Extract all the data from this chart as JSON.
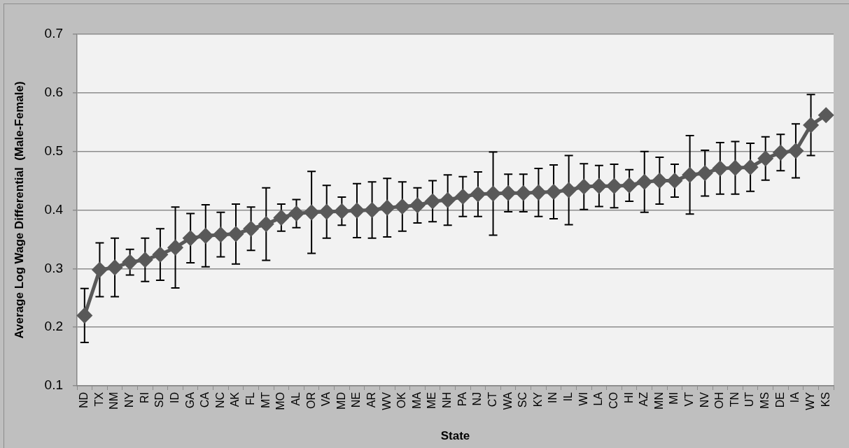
{
  "chart_data": {
    "type": "line",
    "xlabel": "State",
    "ylabel": "Average Log Wage Differential  (Male-Female)",
    "categories": [
      "ND",
      "TX",
      "NM",
      "NY",
      "RI",
      "SD",
      "ID",
      "GA",
      "CA",
      "NC",
      "AK",
      "FL",
      "MT",
      "MO",
      "AL",
      "OR",
      "VA",
      "MD",
      "NE",
      "AR",
      "WV",
      "OK",
      "MA",
      "ME",
      "NH",
      "PA",
      "NJ",
      "CT",
      "WA",
      "SC",
      "KY",
      "IN",
      "IL",
      "WI",
      "LA",
      "CO",
      "HI",
      "AZ",
      "MN",
      "MI",
      "VT",
      "NV",
      "OH",
      "TN",
      "UT",
      "MS",
      "DE",
      "IA",
      "WY",
      "KS"
    ],
    "values": [
      0.22,
      0.298,
      0.302,
      0.311,
      0.315,
      0.324,
      0.336,
      0.352,
      0.356,
      0.358,
      0.359,
      0.368,
      0.376,
      0.387,
      0.394,
      0.396,
      0.397,
      0.398,
      0.399,
      0.4,
      0.404,
      0.406,
      0.408,
      0.415,
      0.417,
      0.423,
      0.427,
      0.428,
      0.429,
      0.429,
      0.43,
      0.431,
      0.434,
      0.44,
      0.441,
      0.441,
      0.442,
      0.448,
      0.45,
      0.45,
      0.46,
      0.463,
      0.471,
      0.472,
      0.473,
      0.488,
      0.498,
      0.501,
      0.545,
      0.562
    ],
    "errors": [
      0.046,
      0.046,
      0.05,
      0.022,
      0.037,
      0.044,
      0.069,
      0.042,
      0.053,
      0.038,
      0.051,
      0.037,
      0.062,
      0.023,
      0.024,
      0.07,
      0.045,
      0.024,
      0.046,
      0.048,
      0.05,
      0.042,
      0.03,
      0.035,
      0.043,
      0.034,
      0.038,
      0.071,
      0.032,
      0.032,
      0.041,
      0.046,
      0.059,
      0.039,
      0.035,
      0.037,
      0.027,
      0.052,
      0.04,
      0.028,
      0.067,
      0.039,
      0.044,
      0.045,
      0.041,
      0.037,
      0.031,
      0.046,
      0.052,
      null
    ],
    "color": "#595959",
    "ylim": [
      0.1,
      0.7
    ],
    "yticks": [
      0.1,
      0.2,
      0.3,
      0.4,
      0.5,
      0.6,
      0.7
    ],
    "grid": "y",
    "marker": "diamond",
    "line_style": "solid"
  }
}
